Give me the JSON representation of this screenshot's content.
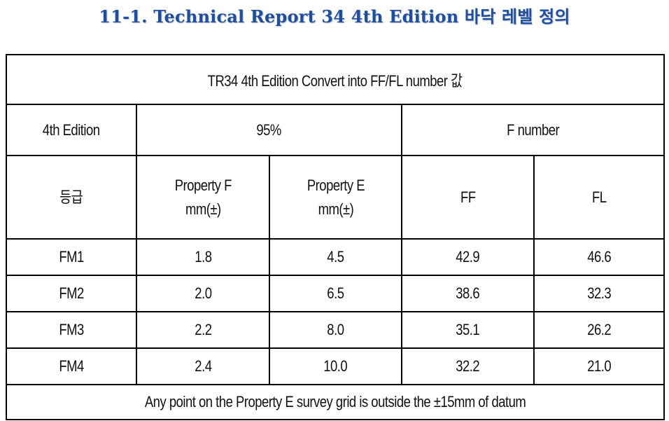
{
  "page": {
    "title": "11-1. Technical Report 34 4th Edition 바닥 레벨 정의"
  },
  "table": {
    "title": "TR34 4th Edition Convert into FF/FL number 값",
    "group_headers": [
      "4th Edition",
      "95%",
      "F number"
    ],
    "sub_headers": {
      "grade": "등급",
      "property_f": [
        "Property F",
        "mm(±)"
      ],
      "property_e": [
        "Property E",
        "mm(±)"
      ],
      "ff": "FF",
      "fl": "FL"
    },
    "rows": [
      [
        "FM1",
        "1.8",
        "4.5",
        "42.9",
        "46.6"
      ],
      [
        "FM2",
        "2.0",
        "6.5",
        "38.6",
        "32.3"
      ],
      [
        "FM3",
        "2.2",
        "8.0",
        "35.1",
        "26.2"
      ],
      [
        "FM4",
        "2.4",
        "10.0",
        "32.2",
        "21.0"
      ]
    ],
    "note": "Any point on the Property E survey grid is outside the ±15mm of datum"
  }
}
